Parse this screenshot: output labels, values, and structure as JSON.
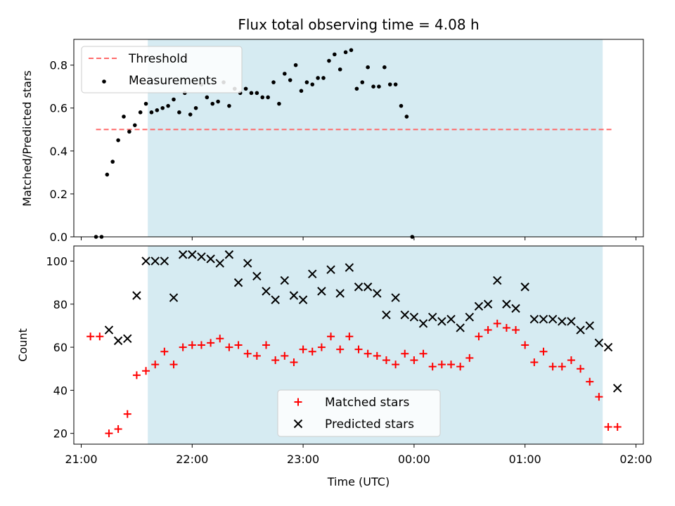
{
  "title": "Flux total observing time = 4.08 h",
  "xlabel": "Time (UTC)",
  "x_ticks": [
    "21:00",
    "22:00",
    "23:00",
    "00:00",
    "01:00",
    "02:00"
  ],
  "colors": {
    "shade": "#add8e6",
    "threshold": "#ff6b6b",
    "matched": "#ff0000",
    "predicted": "#000000",
    "measurements": "#000000"
  },
  "chart_data": [
    {
      "type": "scatter",
      "ylabel": "Matched/Predicted stars",
      "ylim": [
        0,
        0.92
      ],
      "yticks": [
        "0.0",
        "0.2",
        "0.4",
        "0.6",
        "0.8"
      ],
      "shaded_interval": [
        "21:36",
        "01:42"
      ],
      "legend": {
        "placement": "top-left",
        "entries": [
          "Threshold",
          "Measurements"
        ]
      },
      "threshold": {
        "name": "Threshold",
        "value": 0.5,
        "x_range": [
          "21:08",
          "01:47"
        ]
      },
      "series": [
        {
          "name": "Measurements",
          "points": [
            [
              "21:08",
              0.0
            ],
            [
              "21:11",
              0.0
            ],
            [
              "21:14",
              0.29
            ],
            [
              "21:17",
              0.35
            ],
            [
              "21:20",
              0.45
            ],
            [
              "21:23",
              0.56
            ],
            [
              "21:26",
              0.49
            ],
            [
              "21:29",
              0.52
            ],
            [
              "21:32",
              0.58
            ],
            [
              "21:35",
              0.62
            ],
            [
              "21:38",
              0.58
            ],
            [
              "21:41",
              0.59
            ],
            [
              "21:44",
              0.6
            ],
            [
              "21:47",
              0.61
            ],
            [
              "21:50",
              0.64
            ],
            [
              "21:53",
              0.58
            ],
            [
              "21:56",
              0.67
            ],
            [
              "21:59",
              0.57
            ],
            [
              "22:02",
              0.6
            ],
            [
              "22:05",
              0.71
            ],
            [
              "22:08",
              0.65
            ],
            [
              "22:11",
              0.62
            ],
            [
              "22:14",
              0.63
            ],
            [
              "22:17",
              0.72
            ],
            [
              "22:20",
              0.61
            ],
            [
              "22:23",
              0.69
            ],
            [
              "22:26",
              0.67
            ],
            [
              "22:29",
              0.69
            ],
            [
              "22:32",
              0.67
            ],
            [
              "22:35",
              0.67
            ],
            [
              "22:38",
              0.65
            ],
            [
              "22:41",
              0.65
            ],
            [
              "22:44",
              0.72
            ],
            [
              "22:47",
              0.62
            ],
            [
              "22:50",
              0.76
            ],
            [
              "22:53",
              0.73
            ],
            [
              "22:56",
              0.8
            ],
            [
              "22:59",
              0.68
            ],
            [
              "23:02",
              0.72
            ],
            [
              "23:05",
              0.71
            ],
            [
              "23:08",
              0.74
            ],
            [
              "23:11",
              0.74
            ],
            [
              "23:14",
              0.82
            ],
            [
              "23:17",
              0.85
            ],
            [
              "23:20",
              0.78
            ],
            [
              "23:23",
              0.86
            ],
            [
              "23:26",
              0.87
            ],
            [
              "23:29",
              0.69
            ],
            [
              "23:32",
              0.72
            ],
            [
              "23:35",
              0.79
            ],
            [
              "23:38",
              0.7
            ],
            [
              "23:41",
              0.7
            ],
            [
              "23:44",
              0.79
            ],
            [
              "23:47",
              0.71
            ],
            [
              "23:50",
              0.71
            ],
            [
              "23:53",
              0.61
            ],
            [
              "23:56",
              0.56
            ],
            [
              "23:59",
              0.0
            ]
          ]
        }
      ]
    },
    {
      "type": "scatter",
      "ylabel": "Count",
      "ylim": [
        15,
        107
      ],
      "yticks": [
        "20",
        "40",
        "60",
        "80",
        "100"
      ],
      "shaded_interval": [
        "21:36",
        "01:42"
      ],
      "legend": {
        "placement": "bottom-center",
        "entries": [
          "Matched stars",
          "Predicted stars"
        ]
      },
      "series": [
        {
          "name": "Matched stars",
          "marker": "plus",
          "points": [
            [
              "21:05",
              65
            ],
            [
              "21:10",
              65
            ],
            [
              "21:15",
              20
            ],
            [
              "21:20",
              22
            ],
            [
              "21:25",
              29
            ],
            [
              "21:30",
              47
            ],
            [
              "21:35",
              49
            ],
            [
              "21:40",
              52
            ],
            [
              "21:45",
              58
            ],
            [
              "21:50",
              52
            ],
            [
              "21:55",
              60
            ],
            [
              "22:00",
              61
            ],
            [
              "22:05",
              61
            ],
            [
              "22:10",
              62
            ],
            [
              "22:15",
              64
            ],
            [
              "22:20",
              60
            ],
            [
              "22:25",
              61
            ],
            [
              "22:30",
              57
            ],
            [
              "22:35",
              56
            ],
            [
              "22:40",
              61
            ],
            [
              "22:45",
              54
            ],
            [
              "22:50",
              56
            ],
            [
              "22:55",
              53
            ],
            [
              "23:00",
              59
            ],
            [
              "23:05",
              58
            ],
            [
              "23:10",
              60
            ],
            [
              "23:15",
              65
            ],
            [
              "23:20",
              59
            ],
            [
              "23:25",
              65
            ],
            [
              "23:30",
              59
            ],
            [
              "23:35",
              57
            ],
            [
              "23:40",
              56
            ],
            [
              "23:45",
              54
            ],
            [
              "23:50",
              52
            ],
            [
              "23:55",
              57
            ],
            [
              "00:00",
              54
            ],
            [
              "00:05",
              57
            ],
            [
              "00:10",
              51
            ],
            [
              "00:15",
              52
            ],
            [
              "00:20",
              52
            ],
            [
              "00:25",
              51
            ],
            [
              "00:30",
              55
            ],
            [
              "00:35",
              65
            ],
            [
              "00:40",
              68
            ],
            [
              "00:45",
              71
            ],
            [
              "00:50",
              69
            ],
            [
              "00:55",
              68
            ],
            [
              "01:00",
              61
            ],
            [
              "01:05",
              53
            ],
            [
              "01:10",
              58
            ],
            [
              "01:15",
              51
            ],
            [
              "01:20",
              51
            ],
            [
              "01:25",
              54
            ],
            [
              "01:30",
              50
            ],
            [
              "01:35",
              44
            ],
            [
              "01:40",
              37
            ],
            [
              "01:45",
              23
            ],
            [
              "01:50",
              23
            ]
          ]
        },
        {
          "name": "Predicted stars",
          "marker": "x",
          "points": [
            [
              "21:15",
              68
            ],
            [
              "21:20",
              63
            ],
            [
              "21:25",
              64
            ],
            [
              "21:30",
              84
            ],
            [
              "21:35",
              100
            ],
            [
              "21:40",
              100
            ],
            [
              "21:45",
              100
            ],
            [
              "21:50",
              83
            ],
            [
              "21:55",
              103
            ],
            [
              "22:00",
              103
            ],
            [
              "22:05",
              102
            ],
            [
              "22:10",
              101
            ],
            [
              "22:15",
              99
            ],
            [
              "22:20",
              103
            ],
            [
              "22:25",
              90
            ],
            [
              "22:30",
              99
            ],
            [
              "22:35",
              93
            ],
            [
              "22:40",
              86
            ],
            [
              "22:45",
              82
            ],
            [
              "22:50",
              91
            ],
            [
              "22:55",
              84
            ],
            [
              "23:00",
              82
            ],
            [
              "23:05",
              94
            ],
            [
              "23:10",
              86
            ],
            [
              "23:15",
              96
            ],
            [
              "23:20",
              85
            ],
            [
              "23:25",
              97
            ],
            [
              "23:30",
              88
            ],
            [
              "23:35",
              88
            ],
            [
              "23:40",
              85
            ],
            [
              "23:45",
              75
            ],
            [
              "23:50",
              83
            ],
            [
              "23:55",
              75
            ],
            [
              "00:00",
              74
            ],
            [
              "00:05",
              71
            ],
            [
              "00:10",
              74
            ],
            [
              "00:15",
              72
            ],
            [
              "00:20",
              73
            ],
            [
              "00:25",
              69
            ],
            [
              "00:30",
              74
            ],
            [
              "00:35",
              79
            ],
            [
              "00:40",
              80
            ],
            [
              "00:45",
              91
            ],
            [
              "00:50",
              80
            ],
            [
              "00:55",
              78
            ],
            [
              "01:00",
              88
            ],
            [
              "01:05",
              73
            ],
            [
              "01:10",
              73
            ],
            [
              "01:15",
              73
            ],
            [
              "01:20",
              72
            ],
            [
              "01:25",
              72
            ],
            [
              "01:30",
              68
            ],
            [
              "01:35",
              70
            ],
            [
              "01:40",
              62
            ],
            [
              "01:45",
              60
            ],
            [
              "01:50",
              41
            ]
          ]
        }
      ]
    }
  ]
}
